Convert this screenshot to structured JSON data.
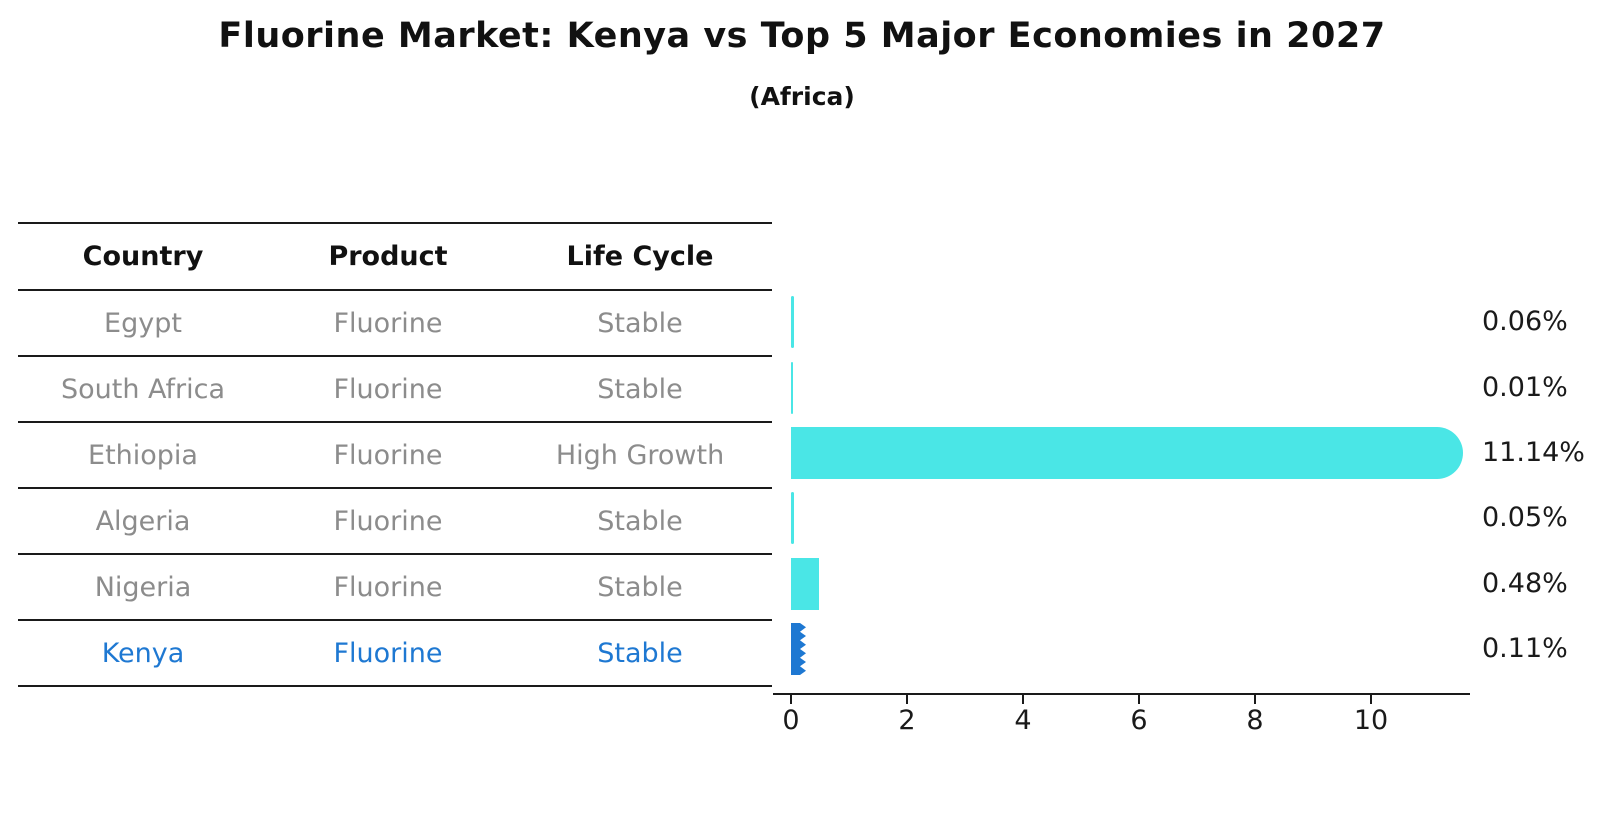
{
  "title": "Fluorine Market: Kenya vs Top 5 Major Economies in 2027",
  "subtitle": "(Africa)",
  "table": {
    "headers": [
      "Country",
      "Product",
      "Life Cycle"
    ],
    "rows": [
      {
        "country": "Egypt",
        "product": "Fluorine",
        "life_cycle": "Stable",
        "highlight": false
      },
      {
        "country": "South Africa",
        "product": "Fluorine",
        "life_cycle": "Stable",
        "highlight": false
      },
      {
        "country": "Ethiopia",
        "product": "Fluorine",
        "life_cycle": "High Growth",
        "highlight": false
      },
      {
        "country": "Algeria",
        "product": "Fluorine",
        "life_cycle": "Stable",
        "highlight": false
      },
      {
        "country": "Nigeria",
        "product": "Fluorine",
        "life_cycle": "Stable",
        "highlight": false
      },
      {
        "country": "Kenya",
        "product": "Fluorine",
        "life_cycle": "Stable",
        "highlight": true
      }
    ]
  },
  "chart_data": {
    "type": "bar",
    "orientation": "horizontal",
    "categories": [
      "Egypt",
      "South Africa",
      "Ethiopia",
      "Algeria",
      "Nigeria",
      "Kenya"
    ],
    "values": [
      0.06,
      0.01,
      11.14,
      0.05,
      0.48,
      0.11
    ],
    "value_labels": [
      "0.06%",
      "0.01%",
      "11.14%",
      "0.05%",
      "0.48%",
      "0.11%"
    ],
    "x_ticks": [
      0,
      2,
      4,
      6,
      8,
      10
    ],
    "xlim": [
      -0.31,
      11.71
    ],
    "grid": false,
    "legend": "none",
    "bar_color": "#4ae6e6",
    "highlight_color": "#1e78d2",
    "highlight_index": 5,
    "highlight_style": "hatched-zigzag"
  }
}
